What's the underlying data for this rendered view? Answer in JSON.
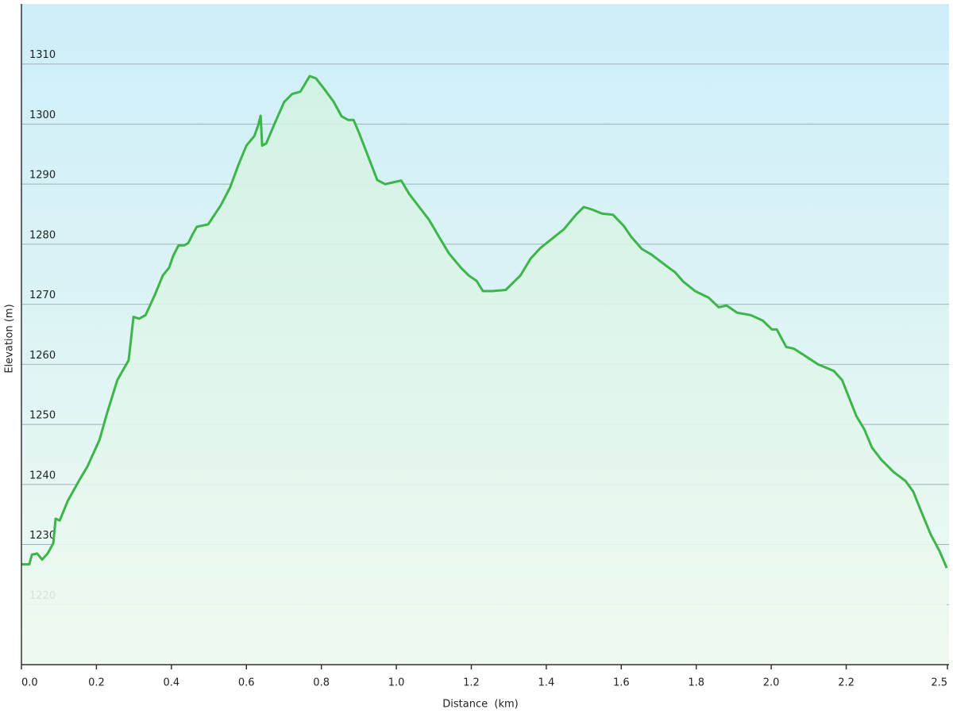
{
  "chart_data": {
    "type": "area",
    "x_label": "Distance  (km)",
    "y_label": "Elevation (m)",
    "x": [
      0,
      0.021,
      0.028,
      0.042,
      0.055,
      0.07,
      0.085,
      0.091,
      0.102,
      0.123,
      0.155,
      0.176,
      0.208,
      0.229,
      0.256,
      0.286,
      0.299,
      0.314,
      0.331,
      0.356,
      0.377,
      0.394,
      0.405,
      0.419,
      0.434,
      0.445,
      0.456,
      0.468,
      0.498,
      0.532,
      0.557,
      0.578,
      0.6,
      0.621,
      0.631,
      0.638,
      0.642,
      0.653,
      0.674,
      0.701,
      0.722,
      0.744,
      0.769,
      0.786,
      0.807,
      0.833,
      0.854,
      0.871,
      0.886,
      0.9,
      0.922,
      0.949,
      0.97,
      0.992,
      1.013,
      1.034,
      1.066,
      1.087,
      1.114,
      1.14,
      1.172,
      1.193,
      1.214,
      1.231,
      1.256,
      1.292,
      1.331,
      1.358,
      1.383,
      1.415,
      1.447,
      1.479,
      1.5,
      1.521,
      1.549,
      1.578,
      1.606,
      1.627,
      1.655,
      1.68,
      1.718,
      1.744,
      1.765,
      1.797,
      1.833,
      1.86,
      1.881,
      1.909,
      1.945,
      1.977,
      2.002,
      2.015,
      2.04,
      2.061,
      2.093,
      2.125,
      2.167,
      2.189,
      2.206,
      2.227,
      2.248,
      2.269,
      2.294,
      2.326,
      2.358,
      2.379,
      2.4,
      2.426,
      2.449,
      2.468
    ],
    "series": [
      {
        "color": "#3cb54a",
        "values": [
          1226.7,
          1226.7,
          1228.3,
          1228.5,
          1227.5,
          1228.5,
          1230.2,
          1234.3,
          1234,
          1237.2,
          1240.8,
          1243,
          1247.4,
          1252,
          1257.4,
          1260.7,
          1267.9,
          1267.6,
          1268.2,
          1271.6,
          1274.8,
          1276.1,
          1278.1,
          1279.8,
          1279.8,
          1280.2,
          1281.6,
          1282.9,
          1283.3,
          1286.5,
          1289.5,
          1293.1,
          1296.4,
          1298,
          1299.7,
          1301.4,
          1296.4,
          1296.8,
          1299.9,
          1303.7,
          1305,
          1305.4,
          1308,
          1307.6,
          1305.9,
          1303.7,
          1301.3,
          1300.7,
          1300.7,
          1298.6,
          1295.1,
          1290.7,
          1290,
          1290.3,
          1290.6,
          1288.4,
          1285.8,
          1284.1,
          1281.2,
          1278.5,
          1276.1,
          1274.8,
          1273.9,
          1272.2,
          1272.2,
          1272.4,
          1274.8,
          1277.6,
          1279.3,
          1280.9,
          1282.5,
          1284.9,
          1286.2,
          1285.8,
          1285.1,
          1284.9,
          1283.1,
          1281.2,
          1279.2,
          1278.3,
          1276.5,
          1275.3,
          1273.8,
          1272.2,
          1271.1,
          1269.5,
          1269.8,
          1268.6,
          1268.2,
          1267.3,
          1265.8,
          1265.8,
          1262.9,
          1262.6,
          1261.3,
          1260,
          1258.9,
          1257.4,
          1254.7,
          1251.4,
          1249.2,
          1246.1,
          1244.1,
          1242.1,
          1240.6,
          1238.8,
          1235.5,
          1231.6,
          1228.9,
          1226.1
        ]
      }
    ],
    "xlim": [
      0,
      2.47
    ],
    "ylim": [
      1210,
      1320
    ],
    "xticks": [
      {
        "value": 0,
        "label": "0.0"
      },
      0.2,
      0.4,
      0.6,
      0.8,
      {
        "value": 1,
        "label": "1.0"
      },
      1.2,
      1.4,
      1.6,
      1.8,
      {
        "value": 2,
        "label": "2.0"
      },
      2.2,
      {
        "value": 2.47,
        "label": "2.5"
      }
    ],
    "yticks": [
      1220,
      1230,
      1240,
      1250,
      1260,
      1270,
      1280,
      1290,
      1300,
      1310
    ],
    "grid": true
  }
}
